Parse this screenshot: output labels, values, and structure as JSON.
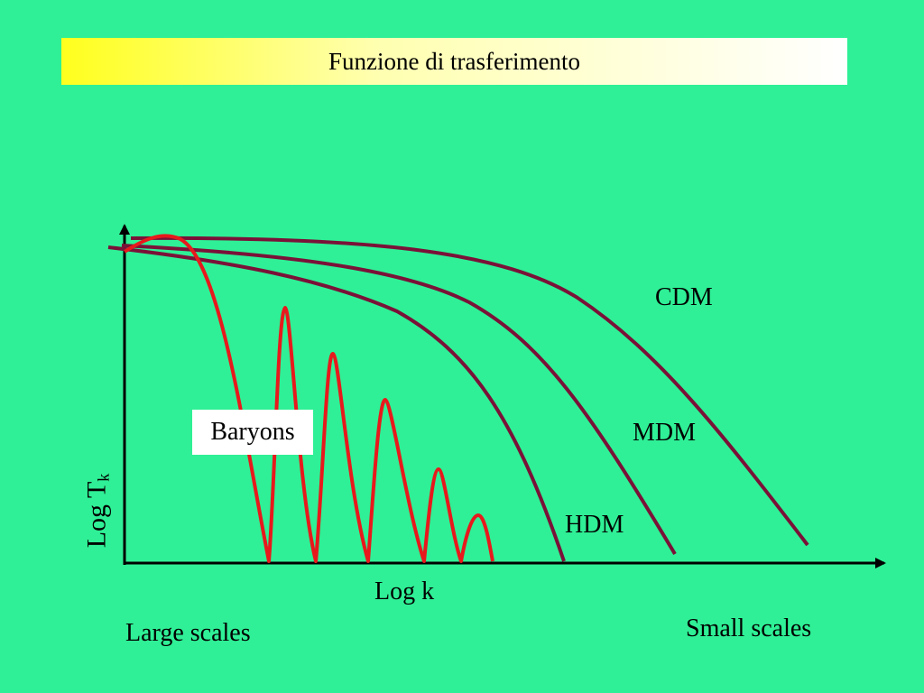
{
  "title": "Funzione di trasferimento",
  "axes": {
    "x_label": "Log k",
    "y_label_main": "Log T",
    "y_label_sub": "k"
  },
  "annotations": {
    "left": "Large scales",
    "right": "Small scales"
  },
  "curves": {
    "cdm": "CDM",
    "mdm": "MDM",
    "hdm": "HDM",
    "baryons": "Baryons"
  },
  "colors": {
    "background": "#2ff096",
    "dark_matter_curves": "#7a1238",
    "baryon_curve": "#e8191c",
    "axis": "#000000"
  }
}
